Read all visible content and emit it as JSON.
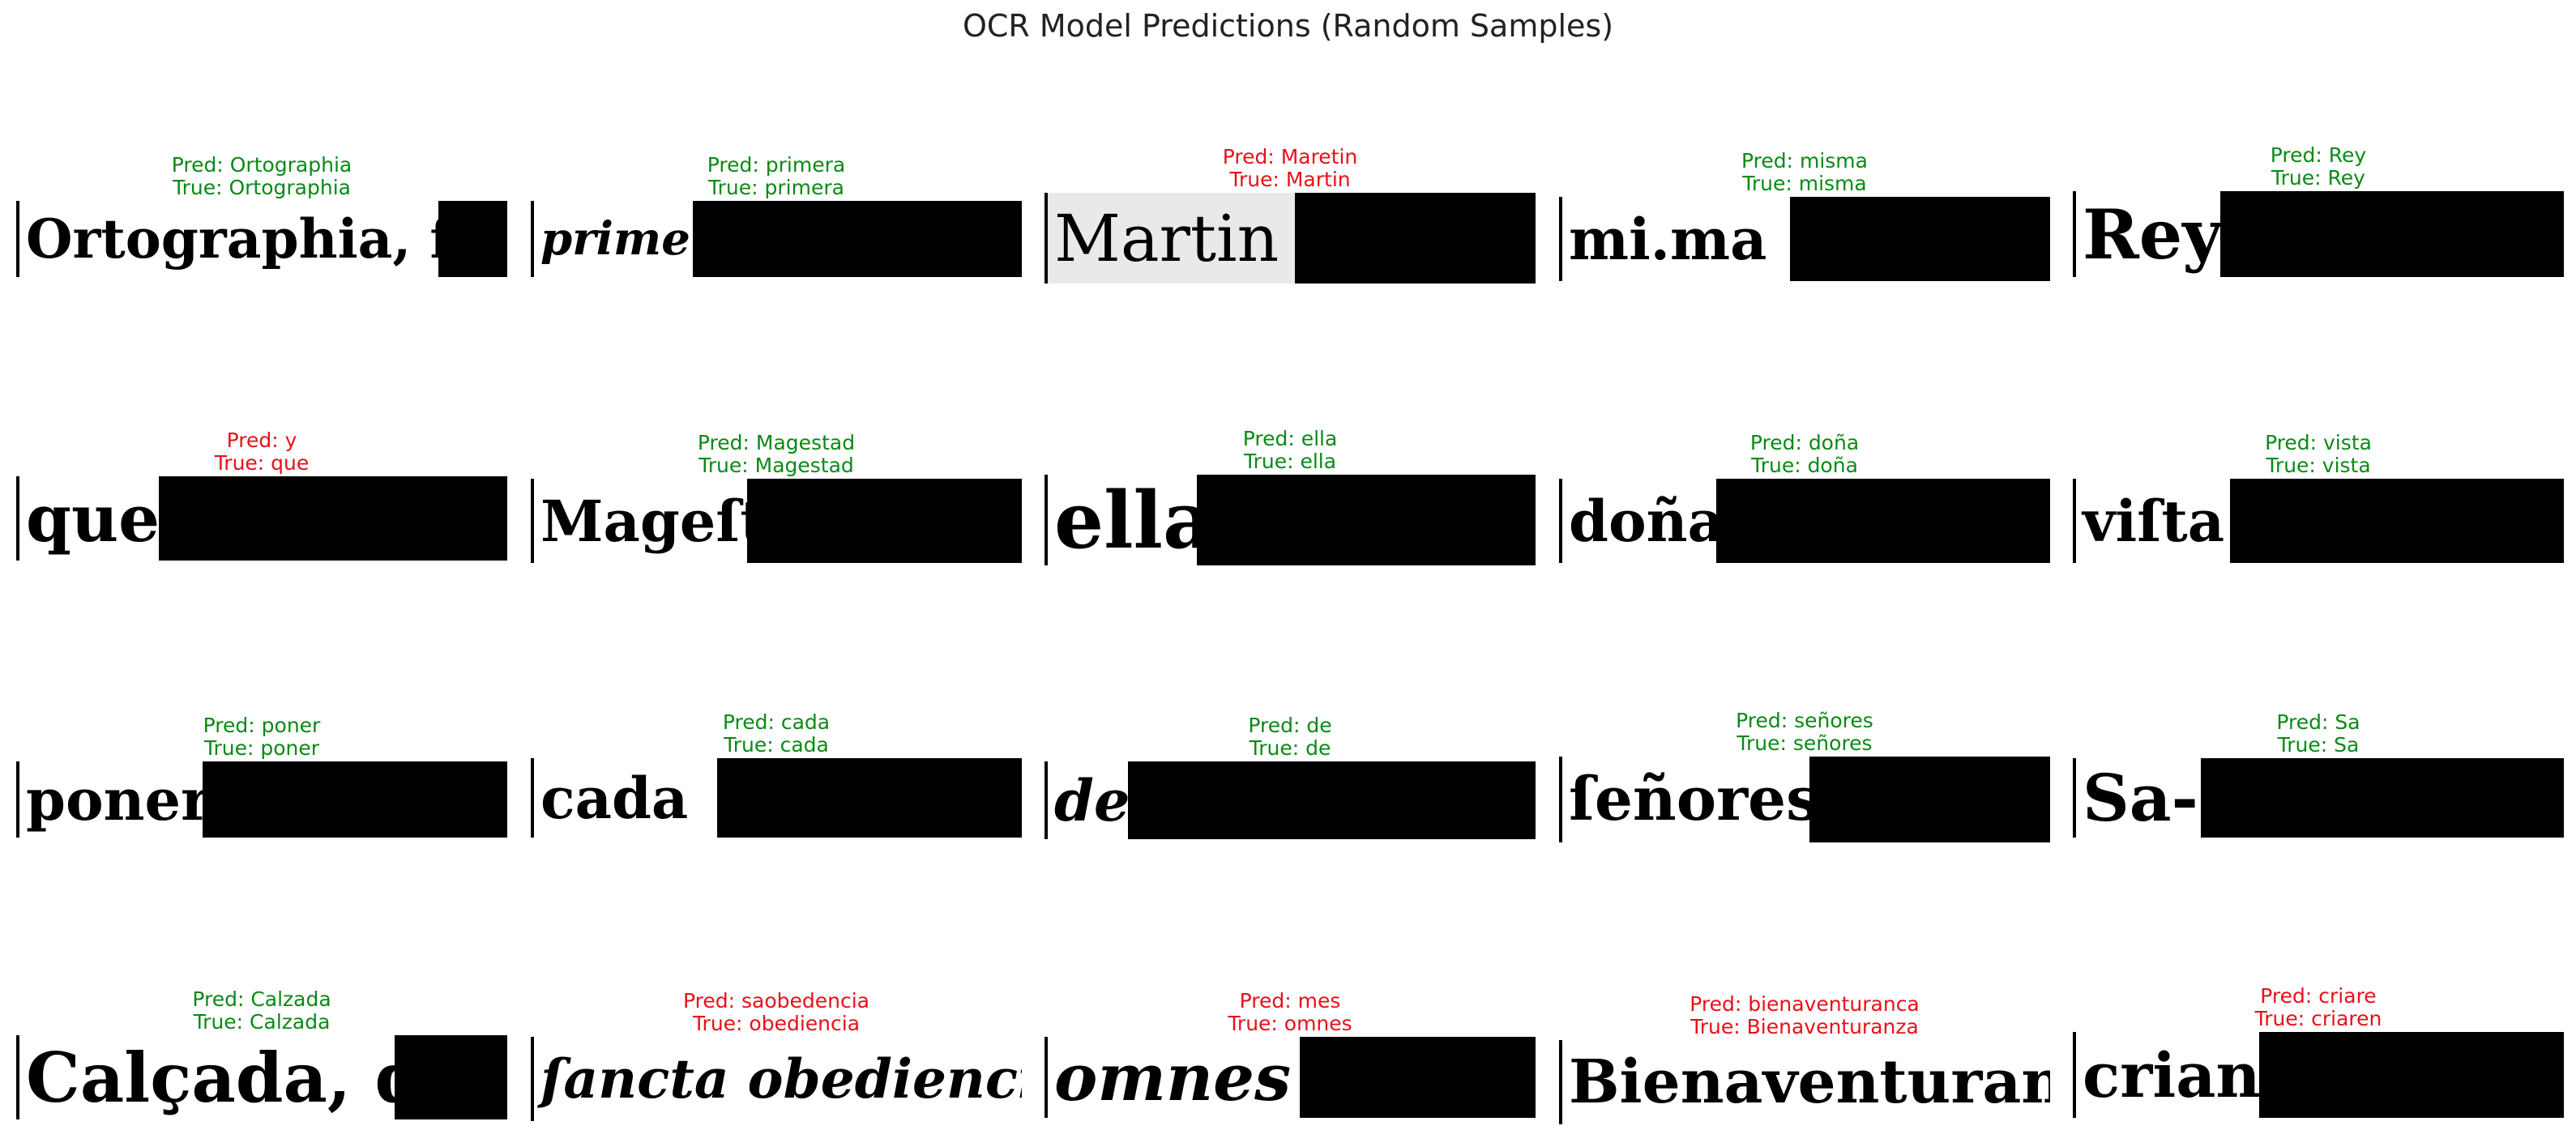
{
  "title": "OCR Model Predictions (Random Samples)",
  "colors": {
    "correct": "#0a8a16",
    "incorrect": "#e8101a"
  },
  "samples": [
    {
      "pred": "Pred: Ortographia",
      "true": "True: Ortographia",
      "correct": true,
      "image_text": "Ortographia, ſegun",
      "fill": 0.86
    },
    {
      "pred": "Pred: primera",
      "true": "True: primera",
      "correct": true,
      "image_text": "primera",
      "fill": 0.33
    },
    {
      "pred": "Pred: Maretin",
      "true": "True: Martin",
      "correct": false,
      "image_text": "Martin",
      "fill": 0.51
    },
    {
      "pred": "Pred: misma",
      "true": "True: misma",
      "correct": true,
      "image_text": "mi.ma",
      "fill": 0.47
    },
    {
      "pred": "Pred: Rey",
      "true": "True: Rey",
      "correct": true,
      "image_text": "Rey",
      "fill": 0.3
    },
    {
      "pred": "Pred: y",
      "true": "True: que",
      "correct": false,
      "image_text": "que",
      "fill": 0.29
    },
    {
      "pred": "Pred: Magestad",
      "true": "True: Magestad",
      "correct": true,
      "image_text": "Mageſtad",
      "fill": 0.44
    },
    {
      "pred": "Pred: ella",
      "true": "True: ella",
      "correct": true,
      "image_text": "ella",
      "fill": 0.31
    },
    {
      "pred": "Pred: doña",
      "true": "True: doña",
      "correct": true,
      "image_text": "doña",
      "fill": 0.32
    },
    {
      "pred": "Pred: vista",
      "true": "True: vista",
      "correct": true,
      "image_text": "viſta",
      "fill": 0.32
    },
    {
      "pred": "Pred: poner",
      "true": "True: poner",
      "correct": true,
      "image_text": "poner",
      "fill": 0.38
    },
    {
      "pred": "Pred: cada",
      "true": "True: cada",
      "correct": true,
      "image_text": "cada",
      "fill": 0.38
    },
    {
      "pred": "Pred: de",
      "true": "True: de",
      "correct": true,
      "image_text": "de",
      "fill": 0.17
    },
    {
      "pred": "Pred: señores",
      "true": "True: señores",
      "correct": true,
      "image_text": "ſeñores",
      "fill": 0.51
    },
    {
      "pred": "Pred: Sa",
      "true": "True: Sa",
      "correct": true,
      "image_text": "Sa-",
      "fill": 0.26
    },
    {
      "pred": "Pred: Calzada",
      "true": "True: Calzada",
      "correct": true,
      "image_text": "Calçada, del",
      "fill": 0.77
    },
    {
      "pred": "Pred: saobedencia",
      "true": "True: obediencia",
      "correct": false,
      "image_text": "ſancta obediencia, y",
      "fill": 1.0
    },
    {
      "pred": "Pred: mes",
      "true": "True: omnes",
      "correct": false,
      "image_text": "omnes",
      "fill": 0.52
    },
    {
      "pred": "Pred: bienaventuranca",
      "true": "True: Bienaventuranza",
      "correct": false,
      "image_text": "Bienaventurança",
      "fill": 1.0
    },
    {
      "pred": "Pred: criare",
      "true": "True: criaren",
      "correct": false,
      "image_text": "crian-",
      "fill": 0.38
    }
  ]
}
